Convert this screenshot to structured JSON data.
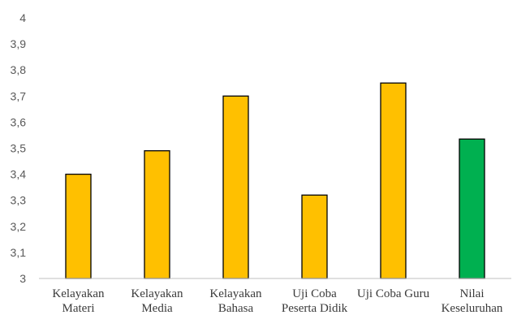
{
  "chart_data": {
    "type": "bar",
    "title": "",
    "xlabel": "",
    "ylabel": "",
    "ylim": [
      3,
      4
    ],
    "yticks": [
      "3",
      "3,1",
      "3,2",
      "3,3",
      "3,4",
      "3,5",
      "3,6",
      "3,7",
      "3,8",
      "3,9",
      "4"
    ],
    "ytick_values": [
      3,
      3.1,
      3.2,
      3.3,
      3.4,
      3.5,
      3.6,
      3.7,
      3.8,
      3.9,
      4
    ],
    "grid": false,
    "legend": "none",
    "categories": [
      [
        "Kelayakan",
        "Materi"
      ],
      [
        "Kelayakan",
        "Media"
      ],
      [
        "Kelayakan",
        "Bahasa"
      ],
      [
        "Uji Coba",
        "Peserta Didik"
      ],
      [
        "Uji Coba Guru"
      ],
      [
        "Nilai",
        "Keseluruhan"
      ]
    ],
    "values": [
      3.4,
      3.49,
      3.7,
      3.32,
      3.75,
      3.535
    ],
    "bar_colors": [
      "#FFC000",
      "#FFC000",
      "#FFC000",
      "#FFC000",
      "#FFC000",
      "#00B050"
    ],
    "bar_outline_color": "#000000",
    "axis_color": "#bfbfbf"
  }
}
